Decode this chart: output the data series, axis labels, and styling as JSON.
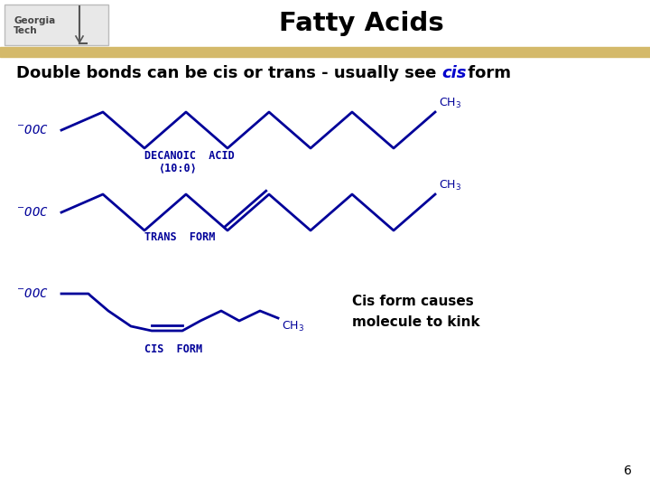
{
  "title": "Fatty Acids",
  "bg_color": "#ffffff",
  "header_bar_color": "#d4b96a",
  "blue": "#000099",
  "black": "#000000",
  "page_number": "6",
  "decanoic_label": "DECANOIC  ACID",
  "decanoic_sub": "⟨10:0⟩",
  "trans_label": "TRANS  FORM",
  "cis_label": "CIS  FORM",
  "cis_note": "Cis form causes\nmolecule to kink"
}
